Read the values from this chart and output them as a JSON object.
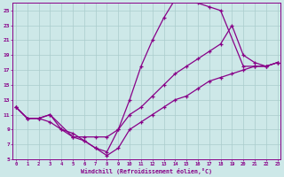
{
  "xlabel": "Windchill (Refroidissement éolien,°C)",
  "bg_color": "#cde8e8",
  "line_color": "#880088",
  "grid_color": "#aacccc",
  "xmin": 0,
  "xmax": 23,
  "ymin": 5,
  "ymax": 26,
  "yticks": [
    5,
    7,
    9,
    11,
    13,
    15,
    17,
    19,
    21,
    23,
    25
  ],
  "line1_x": [
    0,
    1,
    2,
    3,
    4,
    5,
    6,
    7,
    8,
    9,
    10,
    11,
    12,
    13,
    14,
    15,
    16,
    17,
    18,
    20,
    21,
    22,
    23
  ],
  "line1_y": [
    12,
    10.5,
    10.5,
    11,
    9,
    8,
    7.5,
    6.5,
    6,
    9,
    13,
    17.5,
    21,
    24,
    26.5,
    26.5,
    26,
    25.5,
    25,
    17.5,
    17.5,
    17.5,
    18
  ],
  "line2_x": [
    0,
    1,
    2,
    3,
    5,
    6,
    7,
    8,
    9,
    10,
    11,
    12,
    13,
    14,
    15,
    16,
    17,
    18,
    19,
    20,
    21,
    22,
    23
  ],
  "line2_y": [
    12,
    10.5,
    10.5,
    11,
    8,
    8,
    8,
    8,
    9,
    11,
    12,
    13.5,
    15,
    16.5,
    17.5,
    18.5,
    19.5,
    20.5,
    23,
    19,
    18,
    17.5,
    18
  ],
  "line3_x": [
    0,
    1,
    2,
    3,
    4,
    5,
    6,
    7,
    8,
    9,
    10,
    11,
    12,
    13,
    14,
    15,
    16,
    17,
    18,
    19,
    20,
    21,
    22,
    23
  ],
  "line3_y": [
    12,
    10.5,
    10.5,
    10,
    9,
    8.5,
    7.5,
    6.5,
    5.5,
    6.5,
    9,
    10,
    11,
    12,
    13,
    13.5,
    14.5,
    15.5,
    16,
    16.5,
    17,
    17.5,
    17.5,
    18
  ]
}
